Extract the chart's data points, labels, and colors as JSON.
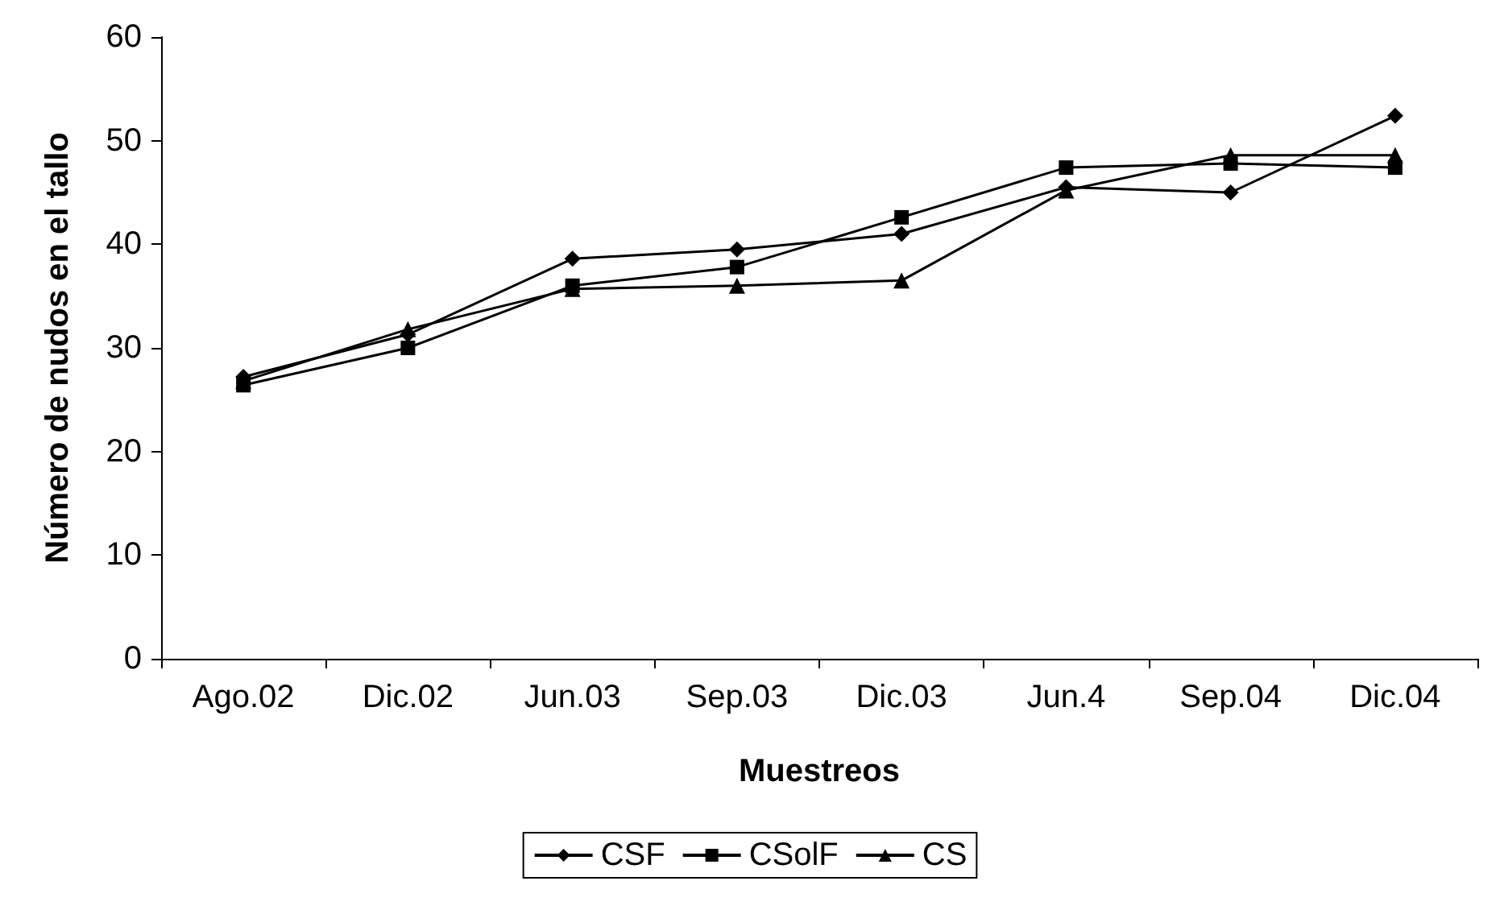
{
  "chart_data": {
    "type": "line",
    "xlabel": "Muestreos",
    "ylabel": "Número de nudos en el tallo",
    "categories": [
      "Ago.02",
      "Dic.02",
      "Jun.03",
      "Sep.03",
      "Dic.03",
      "Jun.4",
      "Sep.04",
      "Dic.04"
    ],
    "series": [
      {
        "name": "CSF",
        "color": "#000000",
        "marker": "diamond",
        "values": [
          27.2,
          31.3,
          38.6,
          39.5,
          41.0,
          45.5,
          45.0,
          52.4
        ]
      },
      {
        "name": "CSolF",
        "color": "#000000",
        "marker": "square",
        "values": [
          26.4,
          30.0,
          36.0,
          37.8,
          42.6,
          47.4,
          47.8,
          47.4
        ]
      },
      {
        "name": "CS",
        "color": "#000000",
        "marker": "triangle",
        "values": [
          26.8,
          31.8,
          35.7,
          36.0,
          36.5,
          45.2,
          48.6,
          48.6
        ]
      }
    ],
    "ylim": [
      0,
      60
    ],
    "yticks": [
      0,
      10,
      20,
      30,
      40,
      50,
      60
    ],
    "grid": false,
    "legend": "bottom",
    "line_style": "solid"
  }
}
